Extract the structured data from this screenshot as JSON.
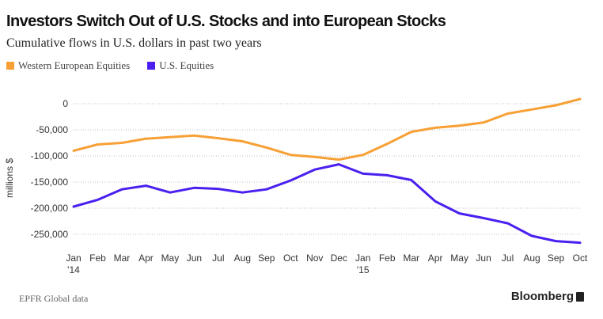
{
  "header": {
    "title": "Investors Switch Out of U.S. Stocks and into European Stocks",
    "subtitle": "Cumulative flows in U.S. dollars in past two years"
  },
  "footer": {
    "source": "EPFR Global data",
    "brand": "Bloomberg"
  },
  "colors": {
    "western_europe": "#f7a035",
    "us": "#4a1ff0",
    "grid": "#bdbdbd"
  },
  "chart_data": {
    "type": "line",
    "title": "Investors Switch Out of U.S. Stocks and into European Stocks",
    "subtitle": "Cumulative flows in U.S. dollars in past two years",
    "xlabel": "",
    "ylabel": "millions $",
    "ylim": [
      -280000,
      20000
    ],
    "yticks": [
      0,
      -50000,
      -100000,
      -150000,
      -200000,
      -250000
    ],
    "ytick_labels": [
      "0",
      "-50,000",
      "-100,000",
      "-150,000",
      "-200,000",
      "-250,000"
    ],
    "categories": [
      "Jan",
      "Feb",
      "Mar",
      "Apr",
      "May",
      "Jun",
      "Jul",
      "Aug",
      "Sep",
      "Oct",
      "Nov",
      "Dec",
      "Jan",
      "Feb",
      "Mar",
      "Apr",
      "May",
      "Jun",
      "Jul",
      "Aug",
      "Sep",
      "Oct"
    ],
    "year_labels": [
      "'14",
      "",
      "",
      "",
      "",
      "",
      "",
      "",
      "",
      "",
      "",
      "",
      "'15",
      "",
      "",
      "",
      "",
      "",
      "",
      "",
      "",
      ""
    ],
    "grid": true,
    "legend": "top-left",
    "series": [
      {
        "name": "Western European Equities",
        "color": "#f7a035",
        "values": [
          -90000,
          -78000,
          -75000,
          -67000,
          -64000,
          -61000,
          -66000,
          -72000,
          -84000,
          -98000,
          -102000,
          -107000,
          -98000,
          -77000,
          -54000,
          -46000,
          -42000,
          -36000,
          -19000,
          -11000,
          -3000,
          9000
        ]
      },
      {
        "name": "U.S. Equities",
        "color": "#4a1ff0",
        "values": [
          -197000,
          -184000,
          -164000,
          -157000,
          -170000,
          -161000,
          -163000,
          -170000,
          -164000,
          -147000,
          -126000,
          -116000,
          -134000,
          -137000,
          -146000,
          -187000,
          -210000,
          -219000,
          -229000,
          -253000,
          -263000,
          -266000
        ]
      }
    ]
  }
}
